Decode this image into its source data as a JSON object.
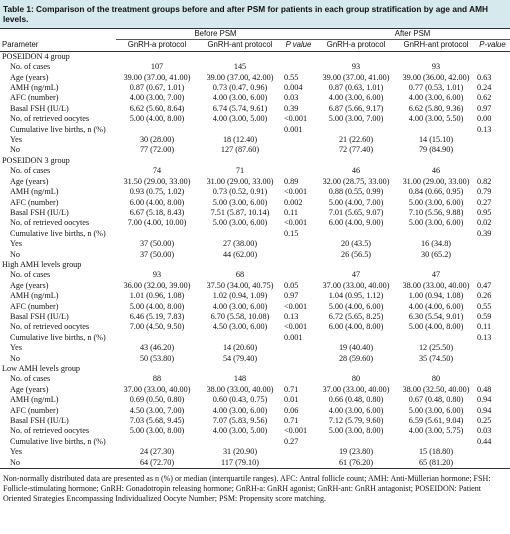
{
  "title": "Table 1: Comparison of the treatment groups before and after PSM for patients in each group stratification by age and AMH levels.",
  "header": {
    "parameter": "Parameter",
    "before": "Before PSM",
    "after": "After PSM",
    "columns": [
      "GnRH-a protocol",
      "GnRH-ant protocol",
      "P value",
      "GnRH-a protocol",
      "GnRH-ant protocol",
      "P-value"
    ]
  },
  "groups": [
    {
      "name": "POSEIDON 4 group",
      "rows": [
        [
          "No. of cases",
          "107",
          "145",
          null,
          "93",
          "93",
          null
        ],
        [
          "Age (years)",
          "39.00 (37.00, 41.00)",
          "39.00 (37.00, 42.00)",
          "0.55",
          "39.00 (37.00, 41.00)",
          "39.00 (36.00, 42.00)",
          "0.63"
        ],
        [
          "AMH (ng/mL)",
          "0.87 (0.67, 1.01)",
          "0.73 (0.47, 0.96)",
          "0.004",
          "0.87 (0.63, 1.01)",
          "0.77 (0.53, 1.01)",
          "0.24"
        ],
        [
          "AFC (number)",
          "4.00 (3.00, 7.00)",
          "4.00 (3.00, 6.00)",
          "0.03",
          "4.00 (3.00, 6.00)",
          "4.00 (3.00, 6.00)",
          "0.62"
        ],
        [
          "Basal FSH (IU/L)",
          "6.62 (5.60, 8.64)",
          "6.74 (5.74, 9.61)",
          "0.39",
          "6.87 (5.66, 9.17)",
          "6.62 (5.80, 9.36)",
          "0.97"
        ],
        [
          "No. of retrieved oocytes",
          "5.00 (4.00, 8.00)",
          "4.00 (3.00, 5.00)",
          "<0.001",
          "5.00 (3.00, 7.00)",
          "4.00 (3.00, 5.50)",
          "0.00"
        ],
        [
          "Cumulative live births, n (%)",
          null,
          null,
          "0.001",
          null,
          null,
          "0.13"
        ],
        [
          "Yes",
          "30 (28.00)",
          "18 (12.40)",
          null,
          "21 (22.60)",
          "14 (15.10)",
          null
        ],
        [
          "No",
          "77 (72.00)",
          "127 (87.60)",
          null,
          "72 (77.40)",
          "79 (84.90)",
          null
        ]
      ]
    },
    {
      "name": "POSEIDON 3 group",
      "rows": [
        [
          "No. of cases",
          "74",
          "71",
          null,
          "46",
          "46",
          null
        ],
        [
          "Age (years)",
          "31.50 (29.00, 33.00)",
          "31.00 (29.00, 33.00)",
          "0.89",
          "32.00 (28.75, 33.00)",
          "31.00 (29.00, 33.00)",
          "0.82"
        ],
        [
          "AMH (ng/mL)",
          "0.93 (0.75, 1.02)",
          "0.73 (0.52, 0.91)",
          "<0.001",
          "0.88 (0.55, 0.99)",
          "0.84 (0.66, 0.95)",
          "0.79"
        ],
        [
          "AFC (number)",
          "6.00 (4.00, 8.00)",
          "5.00 (3.00, 6.00)",
          "0.002",
          "5.00 (4.00, 7.00)",
          "5.00 (3.00, 6.00)",
          "0.27"
        ],
        [
          "Basal FSH (IU/L)",
          "6.67 (5.18, 8.43)",
          "7.51 (5.87, 10.14)",
          "0.11",
          "7.01 (5.65, 9.07)",
          "7.10 (5.56, 9.88)",
          "0.95"
        ],
        [
          "No. of retrieved oocytes",
          "7.00 (4.00, 10.00)",
          "5.00 (3.00, 6.00)",
          "<0.001",
          "6.00 (4.00, 9.00)",
          "5.00 (3.00, 6.00)",
          "0.02"
        ],
        [
          "Cumulative live births, n (%)",
          null,
          null,
          "0.15",
          null,
          null,
          "0.39"
        ],
        [
          "Yes",
          "37 (50.00)",
          "27 (38.00)",
          null,
          "20 (43.5)",
          "16 (34.8)",
          null
        ],
        [
          "No",
          "37 (50.00)",
          "44 (62.00)",
          null,
          "26 (56.5)",
          "30 (65.2)",
          null
        ]
      ]
    },
    {
      "name": "High AMH levels group",
      "rows": [
        [
          "No. of cases",
          "93",
          "68",
          null,
          "47",
          "47",
          null
        ],
        [
          "Age (years)",
          "36.00 (32.00, 39.00)",
          "37.50 (34.00, 40.75)",
          "0.05",
          "37.00 (33.00, 40.00)",
          "38.00 (33.00, 40.00)",
          "0.47"
        ],
        [
          "AMH (ng/mL)",
          "1.01 (0.96, 1.08)",
          "1.02 (0.94, 1.09)",
          "0.97",
          "1.04 (0.95, 1.12)",
          "1.00 (0.94, 1.08)",
          "0.26"
        ],
        [
          "AFC (number)",
          "5.00 (4.00, 8.00)",
          "4.00 (3.00, 6.00)",
          "<0.001",
          "5.00 (4.00, 6.00)",
          "4.00 (4.00, 6.00)",
          "0.55"
        ],
        [
          "Basal FSH (IU/L)",
          "6.46 (5.19, 7.83)",
          "6.70 (5.58, 10.08)",
          "0.13",
          "6.72 (5.65, 8.25)",
          "6.30 (5.54, 9.01)",
          "0.59"
        ],
        [
          "No. of retrieved oocytes",
          "7.00 (4.50, 9.50)",
          "4.50 (3.00, 6.00)",
          "<0.001",
          "6.00 (4.00, 8.00)",
          "5.00 (4.00, 8.00)",
          "0.11"
        ],
        [
          "Cumulative live births, n (%)",
          null,
          null,
          "0.001",
          null,
          null,
          "0.13"
        ],
        [
          "Yes",
          "43 (46.20)",
          "14 (20.60)",
          null,
          "19 (40.40)",
          "12 (25.50)",
          null
        ],
        [
          "No",
          "50 (53.80)",
          "54 (79.40)",
          null,
          "28 (59.60)",
          "35 (74.50)",
          null
        ]
      ]
    },
    {
      "name": "Low AMH levels group",
      "rows": [
        [
          "No. of cases",
          "88",
          "148",
          null,
          "80",
          "80",
          null
        ],
        [
          "Age (years)",
          "37.00 (33.00, 40.00)",
          "38.00 (33.00, 40.00)",
          "0.71",
          "37.00 (33.00, 40.00)",
          "38.00 (32.50, 40.00)",
          "0.48"
        ],
        [
          "AMH (ng/mL)",
          "0.69 (0.50, 0.80)",
          "0.60 (0.43, 0.75)",
          "0.01",
          "0.66 (0.48, 0.80)",
          "0.67 (0.48, 0.80)",
          "0.94"
        ],
        [
          "AFC (number)",
          "4.50 (3.00, 7.00)",
          "4.00 (3.00, 6.00)",
          "0.06",
          "4.00 (3.00, 6.00)",
          "5.00 (3.00, 6.00)",
          "0.94"
        ],
        [
          "Basal FSH (IU/L)",
          "7.03 (5.68, 9.45)",
          "7.07 (5.83, 9.56)",
          "0.71",
          "7.12 (5.79, 9.60)",
          "6.59 (5.61, 9.04)",
          "0.25"
        ],
        [
          "No. of retrieved oocytes",
          "5.00 (3.00, 8.00)",
          "4.00 (3.00, 5.00)",
          "<0.001",
          "5.00 (3.00, 8.00)",
          "4.00 (3.00, 5.75)",
          "0.03"
        ],
        [
          "Cumulative live births, n (%)",
          null,
          null,
          "0.27",
          null,
          null,
          "0.44"
        ],
        [
          "Yes",
          "24 (27.30)",
          "31 (20.90)",
          null,
          "19 (23.80)",
          "15 (18.80)",
          null
        ],
        [
          "No",
          "64 (72.70)",
          "117 (79.10)",
          null,
          "61 (76.20)",
          "65 (81.20)",
          null
        ]
      ]
    }
  ],
  "footnote": "Non-normally distributed data are presented as n (%) or median (interquartile ranges). AFC: Antral follicle count; AMH: Anti-Müllerian hormone; FSH: Follicle-stimulating hormone; GnRH: Gonadotropin releasing hormone; GnRH-a: GnRH agonist; GnRH-ant: GnRH antagonist; POSEIDON: Patient Oriented Strategies Encompassing Individualized Oocyte Number; PSM: Propensity score matching."
}
